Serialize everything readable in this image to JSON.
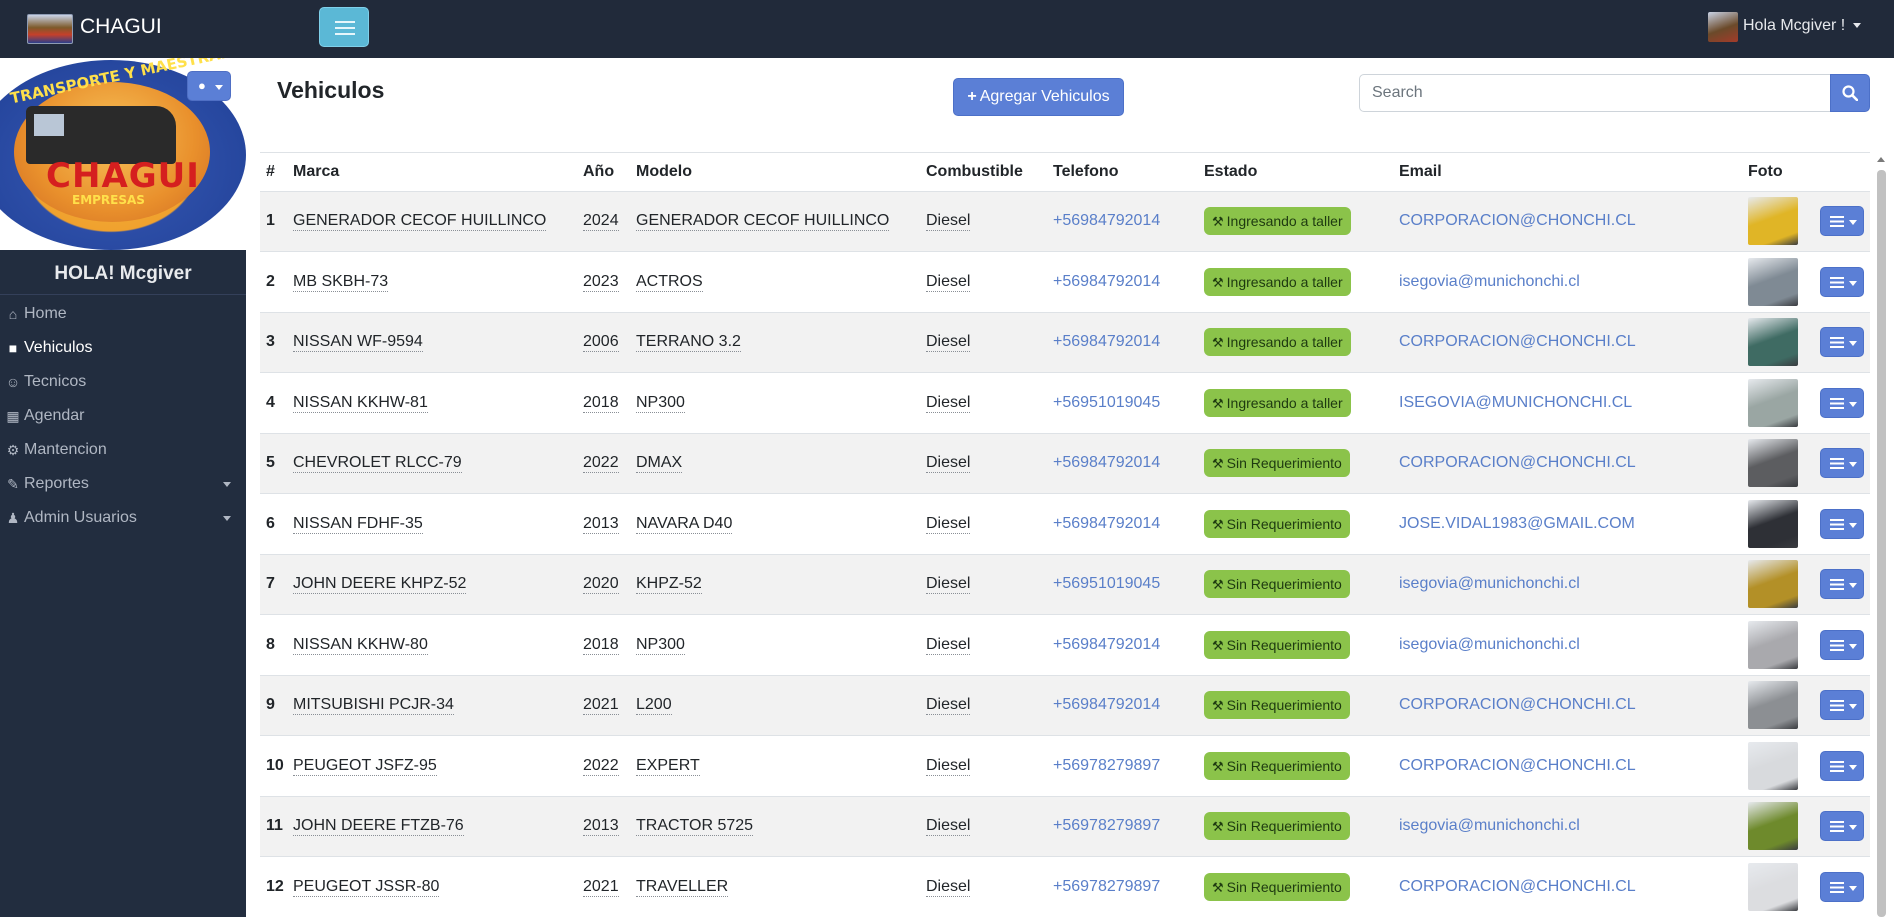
{
  "navbar": {
    "brand": "CHAGUI",
    "user_greeting": "Hola Mcgiver !"
  },
  "sidebar": {
    "logo_text": "CHAGUI",
    "logo_sub": "EMPRESAS",
    "logo_ring": "TRANSPORTE Y MAESTRAN",
    "hello": "HOLA! Mcgiver",
    "items": [
      {
        "label": "Home",
        "icon": "home-icon",
        "active": false,
        "has_caret": false
      },
      {
        "label": "Vehiculos",
        "icon": "truck-icon",
        "active": true,
        "has_caret": false
      },
      {
        "label": "Tecnicos",
        "icon": "users-icon",
        "active": false,
        "has_caret": false
      },
      {
        "label": "Agendar",
        "icon": "calendar-icon",
        "active": false,
        "has_caret": false
      },
      {
        "label": "Mantencion",
        "icon": "gears-icon",
        "active": false,
        "has_caret": false
      },
      {
        "label": "Reportes",
        "icon": "edit-icon",
        "active": false,
        "has_caret": true
      },
      {
        "label": "Admin Usuarios",
        "icon": "group-icon",
        "active": false,
        "has_caret": true
      }
    ]
  },
  "main": {
    "title": "Vehiculos",
    "add_button": "Agregar Vehiculos",
    "search_placeholder": "Search"
  },
  "table": {
    "headers": [
      "#",
      "Marca",
      "Año",
      "Modelo",
      "Combustible",
      "Telefono",
      "Estado",
      "Email",
      "Foto",
      ""
    ],
    "rows": [
      {
        "n": "1",
        "marca": "GENERADOR CECOF HUILLINCO",
        "anio": "2024",
        "modelo": "GENERADOR CECOF HUILLINCO",
        "combustible": "Diesel",
        "telefono": "+56984792014",
        "estado": "Ingresando a taller",
        "email": "CORPORACION@CHONCHI.CL",
        "photo_color": "#e0b526"
      },
      {
        "n": "2",
        "marca": "MB SKBH-73",
        "anio": "2023",
        "modelo": "ACTROS",
        "combustible": "Diesel",
        "telefono": "+56984792014",
        "estado": "Ingresando a taller",
        "email": "isegovia@munichonchi.cl",
        "photo_color": "#7f8a94"
      },
      {
        "n": "3",
        "marca": "NISSAN WF-9594",
        "anio": "2006",
        "modelo": "TERRANO 3.2",
        "combustible": "Diesel",
        "telefono": "+56984792014",
        "estado": "Ingresando a taller",
        "email": "CORPORACION@CHONCHI.CL",
        "photo_color": "#3f6b63"
      },
      {
        "n": "4",
        "marca": "NISSAN KKHW-81",
        "anio": "2018",
        "modelo": "NP300",
        "combustible": "Diesel",
        "telefono": "+56951019045",
        "estado": "Ingresando a taller",
        "email": "ISEGOVIA@MUNICHONCHI.CL",
        "photo_color": "#9aa6a3"
      },
      {
        "n": "5",
        "marca": "CHEVROLET RLCC-79",
        "anio": "2022",
        "modelo": "DMAX",
        "combustible": "Diesel",
        "telefono": "+56984792014",
        "estado": "Sin Requerimiento",
        "email": "CORPORACION@CHONCHI.CL",
        "photo_color": "#5c5d60"
      },
      {
        "n": "6",
        "marca": "NISSAN FDHF-35",
        "anio": "2013",
        "modelo": "NAVARA D40",
        "combustible": "Diesel",
        "telefono": "+56984792014",
        "estado": "Sin Requerimiento",
        "email": "JOSE.VIDAL1983@GMAIL.COM",
        "photo_color": "#2e3036"
      },
      {
        "n": "7",
        "marca": "JOHN DEERE KHPZ-52",
        "anio": "2020",
        "modelo": "KHPZ-52",
        "combustible": "Diesel",
        "telefono": "+56951019045",
        "estado": "Sin Requerimiento",
        "email": "isegovia@munichonchi.cl",
        "photo_color": "#b39027"
      },
      {
        "n": "8",
        "marca": "NISSAN KKHW-80",
        "anio": "2018",
        "modelo": "NP300",
        "combustible": "Diesel",
        "telefono": "+56984792014",
        "estado": "Sin Requerimiento",
        "email": "isegovia@munichonchi.cl",
        "photo_color": "#a9a9ad"
      },
      {
        "n": "9",
        "marca": "MITSUBISHI PCJR-34",
        "anio": "2021",
        "modelo": "L200",
        "combustible": "Diesel",
        "telefono": "+56984792014",
        "estado": "Sin Requerimiento",
        "email": "CORPORACION@CHONCHI.CL",
        "photo_color": "#8c8f93"
      },
      {
        "n": "10",
        "marca": "PEUGEOT JSFZ-95",
        "anio": "2022",
        "modelo": "EXPERT",
        "combustible": "Diesel",
        "telefono": "+56978279897",
        "estado": "Sin Requerimiento",
        "email": "CORPORACION@CHONCHI.CL",
        "photo_color": "#d8dadd"
      },
      {
        "n": "11",
        "marca": "JOHN DEERE FTZB-76",
        "anio": "2013",
        "modelo": "TRACTOR 5725",
        "combustible": "Diesel",
        "telefono": "+56978279897",
        "estado": "Sin Requerimiento",
        "email": "isegovia@munichonchi.cl",
        "photo_color": "#6e8a2c"
      },
      {
        "n": "12",
        "marca": "PEUGEOT JSSR-80",
        "anio": "2021",
        "modelo": "TRAVELLER",
        "combustible": "Diesel",
        "telefono": "+56978279897",
        "estado": "Sin Requerimiento",
        "email": "CORPORACION@CHONCHI.CL",
        "photo_color": "#dcdde0"
      }
    ]
  }
}
